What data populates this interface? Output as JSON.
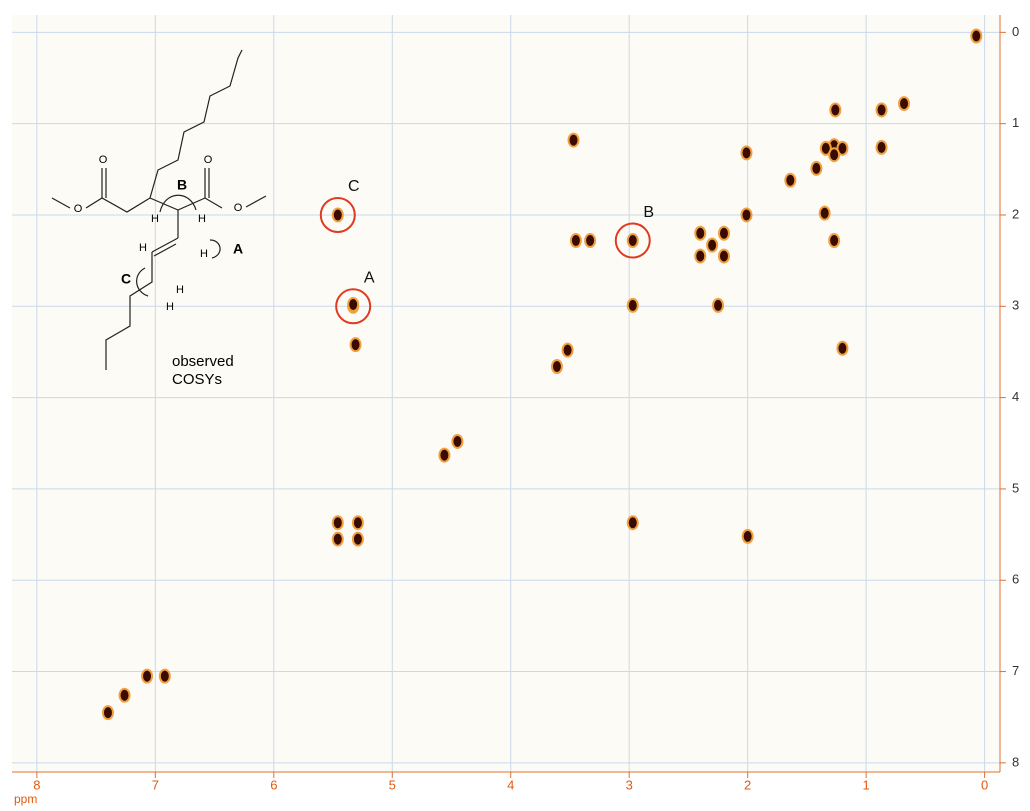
{
  "chart_data": {
    "type": "scatter",
    "x_label": "ppm",
    "x": [
      0.07,
      1.26,
      0.87,
      0.68,
      3.47,
      1.27,
      1.34,
      1.2,
      0.87,
      2.01,
      1.42,
      1.64,
      2.01,
      1.35,
      5.46,
      5.33,
      2.97,
      3.33,
      3.45,
      2.4,
      2.4,
      2.2,
      2.2,
      2.3,
      5.33,
      2.97,
      2.25,
      5.31,
      3.52,
      3.61,
      4.56,
      4.45,
      5.46,
      5.29,
      5.46,
      5.29,
      2.97,
      2.0,
      1.2,
      7.26,
      7.07,
      6.92,
      7.4,
      1.27,
      1.27
    ],
    "values": [
      0.04,
      0.85,
      0.85,
      0.78,
      1.18,
      1.24,
      1.27,
      1.27,
      1.26,
      1.32,
      1.49,
      1.62,
      2.0,
      1.98,
      2.0,
      3.0,
      2.28,
      2.28,
      2.28,
      2.2,
      2.45,
      2.2,
      2.45,
      2.33,
      2.98,
      2.99,
      2.99,
      3.42,
      3.48,
      3.66,
      4.63,
      4.48,
      5.37,
      5.37,
      5.55,
      5.55,
      5.37,
      5.52,
      3.46,
      7.26,
      7.05,
      7.05,
      7.45,
      1.34,
      2.28
    ],
    "color": "#3a0c00",
    "halo_color": "#f0a040",
    "xlim": [
      8.21,
      -0.13
    ],
    "ylim": [
      -0.19,
      8.1
    ],
    "xticks": [
      8,
      7,
      6,
      5,
      4,
      3,
      2,
      1,
      0
    ],
    "yticks": [
      0,
      1,
      2,
      3,
      4,
      5,
      6,
      7,
      8
    ],
    "grid": true,
    "annotation_color": "#e03a20",
    "annotations": [
      {
        "text": "C",
        "x": 5.46,
        "y": 2.0
      },
      {
        "text": "B",
        "x": 2.97,
        "y": 2.28
      },
      {
        "text": "A",
        "x": 5.33,
        "y": 3.0
      }
    ],
    "structure": {
      "atoms": [
        "O",
        "O",
        "O",
        "O",
        "H",
        "H",
        "H",
        "H",
        "H",
        "H"
      ],
      "couplings": [
        "B",
        "A",
        "C"
      ],
      "caption": [
        "observed",
        "COSYs"
      ]
    }
  }
}
